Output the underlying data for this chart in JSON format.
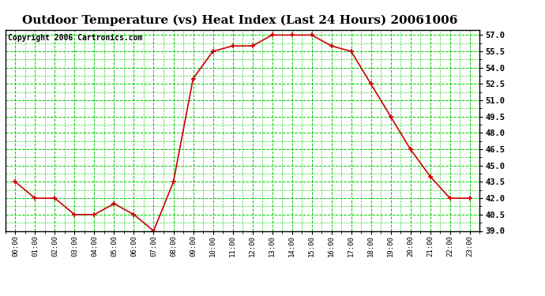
{
  "title": "Outdoor Temperature (vs) Heat Index (Last 24 Hours) 20061006",
  "copyright": "Copyright 2006 Cartronics.com",
  "x_labels": [
    "00:00",
    "01:00",
    "02:00",
    "03:00",
    "04:00",
    "05:00",
    "06:00",
    "07:00",
    "08:00",
    "09:00",
    "10:00",
    "11:00",
    "12:00",
    "13:00",
    "14:00",
    "15:00",
    "16:00",
    "17:00",
    "18:00",
    "19:00",
    "20:00",
    "21:00",
    "22:00",
    "23:00"
  ],
  "y_values": [
    43.5,
    42.0,
    42.0,
    40.5,
    40.5,
    41.5,
    40.5,
    39.0,
    43.5,
    53.0,
    55.5,
    56.0,
    56.0,
    57.0,
    57.0,
    57.0,
    56.0,
    55.5,
    52.5,
    49.5,
    46.5,
    44.0,
    42.0,
    42.0
  ],
  "ylim_min": 39.0,
  "ylim_max": 57.5,
  "yticks": [
    39.0,
    40.5,
    42.0,
    43.5,
    45.0,
    46.5,
    48.0,
    49.5,
    51.0,
    52.5,
    54.0,
    55.5,
    57.0
  ],
  "line_color": "#cc0000",
  "marker_color": "#cc0000",
  "bg_color": "#ffffff",
  "plot_bg_color": "#ffffff",
  "grid_color": "#00cc00",
  "title_fontsize": 11,
  "copyright_fontsize": 7
}
